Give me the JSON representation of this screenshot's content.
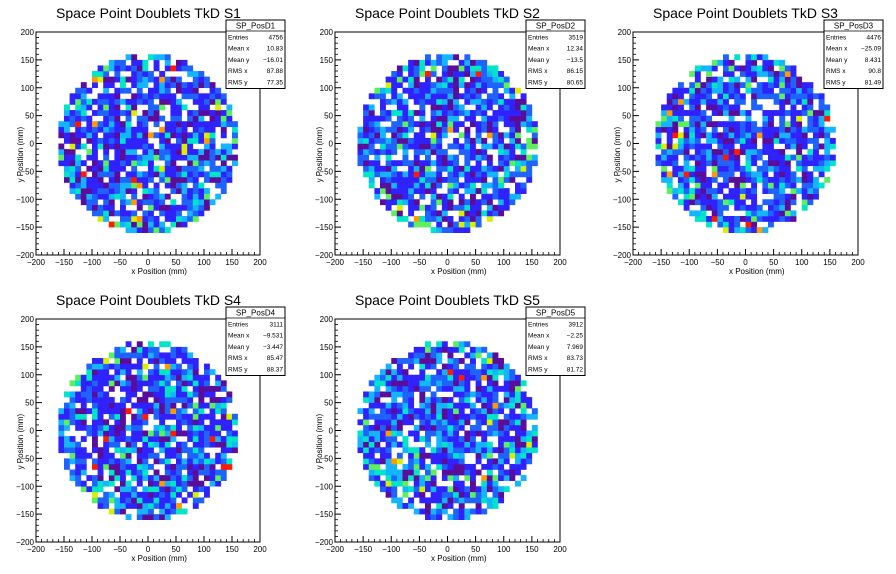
{
  "chart_data": [
    {
      "type": "heatmap",
      "title": "Space Point Doublets TkD S1",
      "xlabel": "x Position (mm)",
      "ylabel": "y Position (mm)",
      "xlim": [
        -200,
        200
      ],
      "ylim": [
        -200,
        200
      ],
      "xticks": [
        "−200",
        "−150",
        "−100",
        "−50",
        "0",
        "50",
        "100",
        "150",
        "200"
      ],
      "yticks": [
        "−200",
        "−150",
        "−100",
        "−50",
        "0",
        "50",
        "100",
        "150",
        "200"
      ],
      "stats": {
        "name": "SP_PosD1",
        "rows": [
          {
            "label": "Entries",
            "value": "4756"
          },
          {
            "label": "Mean x",
            "value": "10.83"
          },
          {
            "label": "Mean y",
            "value": "−16.01"
          },
          {
            "label": "RMS x",
            "value": "87.88"
          },
          {
            "label": "RMS y",
            "value": "77.35"
          }
        ]
      },
      "grid": false,
      "legend": "top-right",
      "footprint": {
        "center_x": 0,
        "center_y": 0,
        "radius": 160
      },
      "hotspots": [
        {
          "x": 95,
          "y": -10,
          "level": 0.5
        }
      ]
    },
    {
      "type": "heatmap",
      "title": "Space Point Doublets TkD S2",
      "xlabel": "x Position (mm)",
      "ylabel": "y Position (mm)",
      "xlim": [
        -200,
        200
      ],
      "ylim": [
        -200,
        200
      ],
      "xticks": [
        "−200",
        "−150",
        "−100",
        "−50",
        "0",
        "50",
        "100",
        "150",
        "200"
      ],
      "yticks": [
        "−200",
        "−150",
        "−100",
        "−50",
        "0",
        "50",
        "100",
        "150",
        "200"
      ],
      "stats": {
        "name": "SP_PosD2",
        "rows": [
          {
            "label": "Entries",
            "value": "3519"
          },
          {
            "label": "Mean x",
            "value": "12.34"
          },
          {
            "label": "Mean y",
            "value": "−13.5"
          },
          {
            "label": "RMS x",
            "value": "86.15"
          },
          {
            "label": "RMS y",
            "value": "80.65"
          }
        ]
      },
      "grid": false,
      "legend": "top-right",
      "footprint": {
        "center_x": 0,
        "center_y": 0,
        "radius": 160
      },
      "hotspots": [
        {
          "x": 150,
          "y": -20,
          "level": 0.45
        }
      ]
    },
    {
      "type": "heatmap",
      "title": "Space Point Doublets TkD S3",
      "xlabel": "x Position (mm)",
      "ylabel": "y Position (mm)",
      "xlim": [
        -200,
        200
      ],
      "ylim": [
        -200,
        200
      ],
      "xticks": [
        "−200",
        "−150",
        "−100",
        "−50",
        "0",
        "50",
        "100",
        "150",
        "200"
      ],
      "yticks": [
        "−200",
        "−150",
        "−100",
        "−50",
        "0",
        "50",
        "100",
        "150",
        "200"
      ],
      "stats": {
        "name": "SP_PosD3",
        "rows": [
          {
            "label": "Entries",
            "value": "4476"
          },
          {
            "label": "Mean x",
            "value": "−25.09"
          },
          {
            "label": "Mean y",
            "value": "8.431"
          },
          {
            "label": "RMS x",
            "value": "90.8"
          },
          {
            "label": "RMS y",
            "value": "81.49"
          }
        ]
      },
      "grid": false,
      "legend": "top-right",
      "footprint": {
        "center_x": 0,
        "center_y": 0,
        "radius": 160
      },
      "hotspots": [
        {
          "x": -140,
          "y": 20,
          "level": 0.55
        }
      ]
    },
    {
      "type": "heatmap",
      "title": "Space Point Doublets TkD S4",
      "xlabel": "x Position (mm)",
      "ylabel": "y Position (mm)",
      "xlim": [
        -200,
        200
      ],
      "ylim": [
        -200,
        200
      ],
      "xticks": [
        "−200",
        "−150",
        "−100",
        "−50",
        "0",
        "50",
        "100",
        "150",
        "200"
      ],
      "yticks": [
        "−200",
        "−150",
        "−100",
        "−50",
        "0",
        "50",
        "100",
        "150",
        "200"
      ],
      "stats": {
        "name": "SP_PosD4",
        "rows": [
          {
            "label": "Entries",
            "value": "3111"
          },
          {
            "label": "Mean x",
            "value": "−9.531"
          },
          {
            "label": "Mean y",
            "value": "−3.447"
          },
          {
            "label": "RMS x",
            "value": "85.47"
          },
          {
            "label": "RMS y",
            "value": "88.37"
          }
        ]
      },
      "grid": false,
      "legend": "top-right",
      "footprint": {
        "center_x": 0,
        "center_y": 0,
        "radius": 160
      },
      "hotspots": [
        {
          "x": -90,
          "y": -110,
          "level": 0.45
        }
      ]
    },
    {
      "type": "heatmap",
      "title": "Space Point Doublets TkD S5",
      "xlabel": "x Position (mm)",
      "ylabel": "y Position (mm)",
      "xlim": [
        -200,
        200
      ],
      "ylim": [
        -200,
        200
      ],
      "xticks": [
        "−200",
        "−150",
        "−100",
        "−50",
        "0",
        "50",
        "100",
        "150",
        "200"
      ],
      "yticks": [
        "−200",
        "−150",
        "−100",
        "−50",
        "0",
        "50",
        "100",
        "150",
        "200"
      ],
      "stats": {
        "name": "SP_PosD5",
        "rows": [
          {
            "label": "Entries",
            "value": "3912"
          },
          {
            "label": "Mean x",
            "value": "−2.25"
          },
          {
            "label": "Mean y",
            "value": "7.969"
          },
          {
            "label": "RMS x",
            "value": "83.73"
          },
          {
            "label": "RMS y",
            "value": "81.72"
          }
        ]
      },
      "grid": false,
      "legend": "top-right",
      "footprint": {
        "center_x": 0,
        "center_y": 0,
        "radius": 160
      },
      "hotspots": [
        {
          "x": -80,
          "y": -80,
          "level": 0.5
        }
      ]
    }
  ],
  "colors": {
    "palette": [
      "#5a0d9a",
      "#2f22ff",
      "#1f63ff",
      "#14b4ff",
      "#00e4c8",
      "#5cf05c",
      "#d8f000",
      "#ff9a00",
      "#ff1a00"
    ],
    "empty_bin": "#ffffff",
    "axis": "#000000",
    "frame_bg": "#ffffff"
  }
}
